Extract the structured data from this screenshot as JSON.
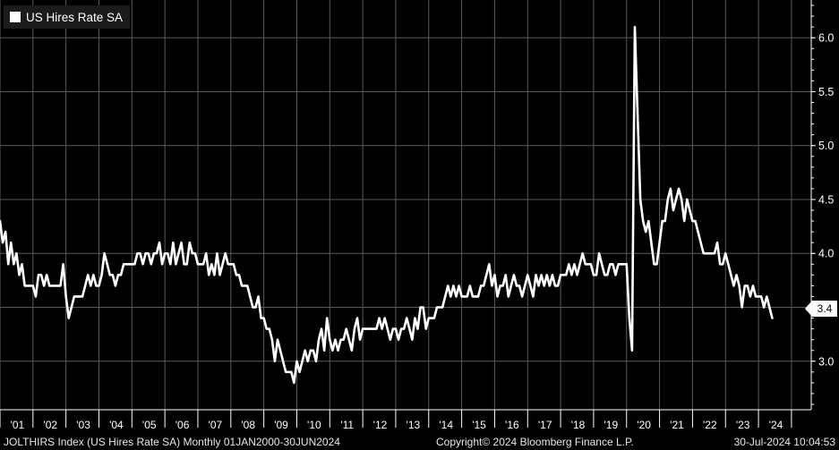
{
  "chart_data": {
    "type": "line",
    "title": "US Hires Rate SA",
    "xlabel": "",
    "ylabel": "",
    "xlim": [
      2000.0,
      2024.6
    ],
    "ylim": [
      2.55,
      6.35
    ],
    "y_ticks": [
      3.0,
      3.5,
      4.0,
      4.5,
      5.0,
      5.5,
      6.0
    ],
    "y_tick_labels": [
      "3.0",
      "3.5",
      "4.0",
      "4.5",
      "5.0",
      "5.5",
      "6.0"
    ],
    "x_tick_labels": [
      "'01",
      "'02",
      "'03",
      "'04",
      "'05",
      "'06",
      "'07",
      "'08",
      "'09",
      "'10",
      "'11",
      "'12",
      "'13",
      "'14",
      "'15",
      "'16",
      "'17",
      "'18",
      "'19",
      "'20",
      "'21",
      "'22",
      "'23",
      "'24"
    ],
    "grid": true,
    "legend": "top-left",
    "line_color": "#ffffff",
    "last_value_label": "3.4",
    "series": [
      {
        "name": "US Hires Rate SA",
        "start": "2000-01",
        "frequency": "monthly",
        "values": [
          4.3,
          4.1,
          4.2,
          3.9,
          4.1,
          3.9,
          4.0,
          3.8,
          3.9,
          3.7,
          3.7,
          3.7,
          3.7,
          3.6,
          3.8,
          3.8,
          3.7,
          3.8,
          3.7,
          3.7,
          3.7,
          3.7,
          3.7,
          3.9,
          3.6,
          3.4,
          3.5,
          3.6,
          3.6,
          3.6,
          3.6,
          3.7,
          3.8,
          3.7,
          3.8,
          3.7,
          3.7,
          3.8,
          4.0,
          3.9,
          3.8,
          3.8,
          3.7,
          3.8,
          3.8,
          3.9,
          3.9,
          3.9,
          3.9,
          3.9,
          4.0,
          4.0,
          3.9,
          4.0,
          4.0,
          3.9,
          4.0,
          4.0,
          4.1,
          3.9,
          4.0,
          4.0,
          3.9,
          4.1,
          3.9,
          4.0,
          4.1,
          3.9,
          3.9,
          4.1,
          4.0,
          4.0,
          3.9,
          3.9,
          3.9,
          4.0,
          3.8,
          3.9,
          3.8,
          4.0,
          3.8,
          3.9,
          4.0,
          3.9,
          3.9,
          3.9,
          3.8,
          3.8,
          3.7,
          3.7,
          3.7,
          3.6,
          3.5,
          3.5,
          3.6,
          3.4,
          3.4,
          3.3,
          3.3,
          3.2,
          3.0,
          3.2,
          3.1,
          3.0,
          2.9,
          2.9,
          2.9,
          2.8,
          3.0,
          2.9,
          3.0,
          3.1,
          3.0,
          3.1,
          3.1,
          3.0,
          3.2,
          3.3,
          3.1,
          3.4,
          3.2,
          3.1,
          3.2,
          3.1,
          3.2,
          3.2,
          3.3,
          3.2,
          3.1,
          3.3,
          3.4,
          3.2,
          3.3,
          3.3,
          3.3,
          3.3,
          3.3,
          3.3,
          3.4,
          3.3,
          3.4,
          3.3,
          3.2,
          3.3,
          3.3,
          3.2,
          3.3,
          3.3,
          3.4,
          3.3,
          3.2,
          3.4,
          3.3,
          3.5,
          3.5,
          3.3,
          3.4,
          3.4,
          3.4,
          3.5,
          3.5,
          3.5,
          3.6,
          3.7,
          3.6,
          3.7,
          3.6,
          3.7,
          3.6,
          3.6,
          3.6,
          3.7,
          3.6,
          3.6,
          3.6,
          3.7,
          3.7,
          3.8,
          3.9,
          3.7,
          3.8,
          3.6,
          3.7,
          3.7,
          3.8,
          3.6,
          3.7,
          3.8,
          3.7,
          3.7,
          3.6,
          3.7,
          3.8,
          3.7,
          3.6,
          3.8,
          3.7,
          3.8,
          3.7,
          3.8,
          3.7,
          3.8,
          3.7,
          3.7,
          3.8,
          3.8,
          3.8,
          3.9,
          3.8,
          3.9,
          3.8,
          3.9,
          4.0,
          3.9,
          3.9,
          3.9,
          3.8,
          3.8,
          4.0,
          3.9,
          3.8,
          3.8,
          3.9,
          3.9,
          3.8,
          3.9,
          3.9,
          3.9,
          3.9,
          3.4,
          3.1,
          6.1,
          5.3,
          4.5,
          4.3,
          4.2,
          4.3,
          4.1,
          3.9,
          3.9,
          4.1,
          4.3,
          4.3,
          4.5,
          4.6,
          4.4,
          4.5,
          4.6,
          4.5,
          4.3,
          4.5,
          4.4,
          4.3,
          4.3,
          4.2,
          4.1,
          4.0,
          4.0,
          4.0,
          4.0,
          4.0,
          4.1,
          3.9,
          3.9,
          4.0,
          3.9,
          3.8,
          3.7,
          3.8,
          3.7,
          3.5,
          3.7,
          3.7,
          3.6,
          3.7,
          3.6,
          3.6,
          3.6,
          3.5,
          3.6,
          3.5,
          3.4
        ]
      }
    ]
  },
  "footer": {
    "ticker": "JOLTHIRS Index (US Hires Rate SA)  Monthly 01JAN2000-30JUN2024",
    "copyright": "Copyright© 2024 Bloomberg Finance L.P.",
    "timestamp": "30-Jul-2024 10:04:53"
  }
}
